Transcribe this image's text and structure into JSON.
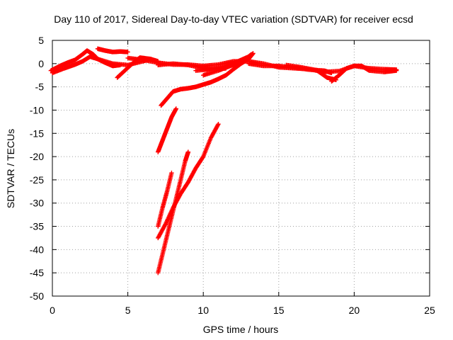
{
  "chart_data": {
    "type": "scatter",
    "title": "Day 110 of 2017, Sidereal Day-to-day VTEC variation (SDTVAR) for receiver ecsd",
    "xlabel": "GPS time / hours",
    "ylabel": "SDTVAR / TECUs",
    "xlim": [
      0,
      25
    ],
    "ylim": [
      -50,
      5
    ],
    "x_ticks": [
      0,
      5,
      10,
      15,
      20,
      25
    ],
    "y_ticks": [
      5,
      0,
      -5,
      -10,
      -15,
      -20,
      -25,
      -30,
      -35,
      -40,
      -45,
      -50
    ],
    "x_tick_labels": [
      "0",
      "5",
      "10",
      "15",
      "20",
      "25"
    ],
    "y_tick_labels": [
      "5",
      "0",
      "-5",
      "-10",
      "-15",
      "-20",
      "-25",
      "-30",
      "-35",
      "-40",
      "-45",
      "-50"
    ],
    "grid": true,
    "marker": "plus",
    "color": "#ff0000",
    "series": [
      {
        "points": [
          [
            -0.1,
            -1.5
          ],
          [
            0.5,
            -0.5
          ],
          [
            1.0,
            0.2
          ],
          [
            1.5,
            0.8
          ],
          [
            2.0,
            2.0
          ],
          [
            2.3,
            2.8
          ],
          [
            2.7,
            2.0
          ],
          [
            3.0,
            1.0
          ],
          [
            3.5,
            0.2
          ],
          [
            4.0,
            -0.5
          ],
          [
            4.5,
            -0.3
          ]
        ]
      },
      {
        "points": [
          [
            3.0,
            3.2
          ],
          [
            3.5,
            2.8
          ],
          [
            4.0,
            2.5
          ],
          [
            4.5,
            2.6
          ],
          [
            5.0,
            2.5
          ]
        ]
      },
      {
        "points": [
          [
            0.0,
            -2.0
          ],
          [
            0.8,
            -1.0
          ],
          [
            1.5,
            -0.2
          ],
          [
            2.0,
            0.5
          ],
          [
            2.5,
            1.5
          ],
          [
            3.0,
            1.0
          ],
          [
            4.0,
            0.0
          ],
          [
            5.0,
            -0.3
          ],
          [
            6.0,
            0.5
          ],
          [
            6.5,
            1.0
          ],
          [
            7.0,
            0.5
          ]
        ]
      },
      {
        "points": [
          [
            4.3,
            -3.0
          ],
          [
            4.8,
            -1.5
          ],
          [
            5.3,
            0.0
          ],
          [
            5.8,
            1.3
          ],
          [
            6.5,
            1.0
          ]
        ]
      },
      {
        "points": [
          [
            5.0,
            1.2
          ],
          [
            6.0,
            0.8
          ],
          [
            7.0,
            0.2
          ],
          [
            8.0,
            -0.2
          ],
          [
            9.0,
            -0.2
          ],
          [
            10.0,
            -0.5
          ],
          [
            11.0,
            -0.2
          ],
          [
            12.0,
            0.5
          ],
          [
            13.0,
            0.5
          ],
          [
            14.0,
            0.0
          ],
          [
            15.0,
            -0.8
          ],
          [
            16.0,
            -1.0
          ],
          [
            17.0,
            -1.2
          ],
          [
            18.0,
            -1.8
          ],
          [
            19.0,
            -1.6
          ],
          [
            20.0,
            -0.5
          ],
          [
            21.0,
            -1.0
          ],
          [
            22.0,
            -1.2
          ],
          [
            22.8,
            -1.3
          ]
        ]
      },
      {
        "points": [
          [
            7.0,
            -0.3
          ],
          [
            8.0,
            0.0
          ],
          [
            9.0,
            -0.3
          ],
          [
            10.0,
            -1.0
          ],
          [
            11.0,
            -1.2
          ],
          [
            11.5,
            -1.0
          ]
        ]
      },
      {
        "points": [
          [
            9.5,
            -1.5
          ],
          [
            10.5,
            -1.2
          ],
          [
            11.5,
            -0.5
          ],
          [
            12.3,
            0.5
          ],
          [
            13.0,
            1.5
          ],
          [
            13.2,
            2.0
          ]
        ]
      },
      {
        "points": [
          [
            10.0,
            -2.5
          ],
          [
            11.0,
            -1.5
          ],
          [
            11.8,
            -0.5
          ],
          [
            12.5,
            0.3
          ]
        ]
      },
      {
        "points": [
          [
            13.0,
            0.0
          ],
          [
            14.0,
            -0.5
          ],
          [
            15.0,
            -0.5
          ],
          [
            16.0,
            -0.8
          ],
          [
            17.0,
            -1.3
          ],
          [
            18.0,
            -1.5
          ],
          [
            18.5,
            -2.0
          ]
        ]
      },
      {
        "points": [
          [
            15.5,
            -0.3
          ],
          [
            16.5,
            -0.8
          ],
          [
            17.5,
            -1.4
          ],
          [
            18.2,
            -3.0
          ],
          [
            18.8,
            -3.5
          ]
        ]
      },
      {
        "points": [
          [
            18.5,
            -3.8
          ],
          [
            19.0,
            -2.5
          ],
          [
            19.5,
            -1.0
          ],
          [
            20.0,
            -0.5
          ],
          [
            20.5,
            -0.5
          ],
          [
            21.0,
            -1.5
          ],
          [
            22.0,
            -1.8
          ],
          [
            22.8,
            -1.5
          ]
        ]
      },
      {
        "points": [
          [
            7.2,
            -9.0
          ],
          [
            7.6,
            -7.5
          ],
          [
            8.0,
            -6.0
          ],
          [
            8.5,
            -5.5
          ],
          [
            9.0,
            -5.3
          ],
          [
            9.5,
            -5.0
          ],
          [
            10.0,
            -4.5
          ],
          [
            10.5,
            -4.0
          ],
          [
            11.0,
            -3.3
          ],
          [
            11.5,
            -2.5
          ],
          [
            12.0,
            -1.2
          ],
          [
            12.5,
            0.0
          ],
          [
            13.0,
            1.0
          ],
          [
            13.3,
            2.2
          ]
        ]
      },
      {
        "points": [
          [
            7.0,
            -19.0
          ],
          [
            7.3,
            -16.5
          ],
          [
            7.6,
            -14.0
          ],
          [
            7.9,
            -11.5
          ],
          [
            8.2,
            -9.7
          ]
        ]
      },
      {
        "points": [
          [
            7.0,
            -35.0
          ],
          [
            7.3,
            -31.0
          ],
          [
            7.6,
            -27.5
          ],
          [
            7.9,
            -23.5
          ]
        ]
      },
      {
        "points": [
          [
            7.0,
            -45.0
          ],
          [
            7.3,
            -41.0
          ],
          [
            7.6,
            -37.0
          ],
          [
            7.9,
            -33.0
          ],
          [
            8.2,
            -29.0
          ],
          [
            8.5,
            -25.0
          ],
          [
            8.8,
            -21.0
          ],
          [
            9.0,
            -19.0
          ]
        ]
      },
      {
        "points": [
          [
            7.0,
            -37.5
          ],
          [
            7.5,
            -34.5
          ],
          [
            8.0,
            -31.0
          ],
          [
            8.5,
            -28.0
          ],
          [
            9.0,
            -25.5
          ],
          [
            9.5,
            -22.5
          ],
          [
            10.0,
            -20.0
          ],
          [
            10.5,
            -16.0
          ],
          [
            11.0,
            -13.0
          ]
        ]
      }
    ]
  }
}
